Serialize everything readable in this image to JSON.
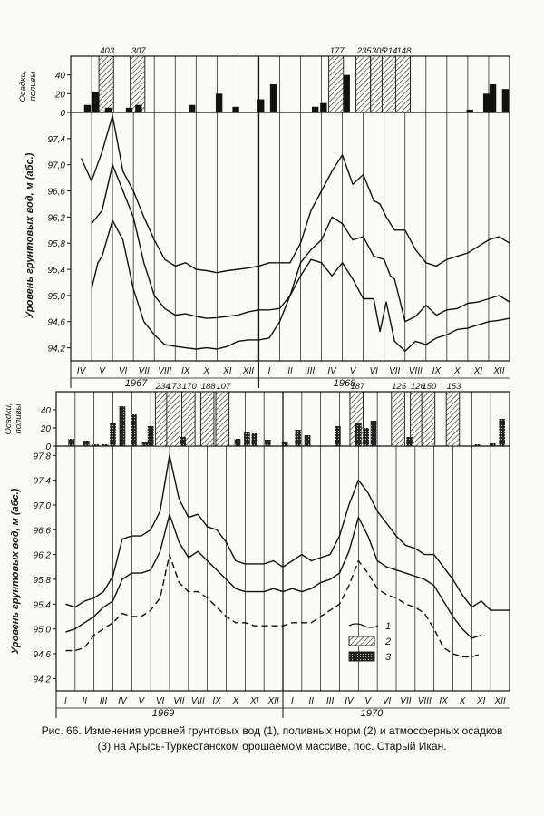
{
  "caption": "Рис. 66. Изменения уровней грунтовых вод (1), поливных норм (2) и атмосферных осадков (3) на Арысь-Туркестанском орошаемом массиве, пос. Старый Икан.",
  "chart_data": [
    {
      "type": "line",
      "panel": "top",
      "years": [
        "1967",
        "1968"
      ],
      "months": [
        "IV",
        "V",
        "VI",
        "VII",
        "VIII",
        "IX",
        "X",
        "XI",
        "XII",
        "I",
        "II",
        "III",
        "IV",
        "V",
        "VI",
        "VII",
        "VIII",
        "IX",
        "X",
        "XI",
        "XII"
      ],
      "ylabel": "Уровень грунтовых вод, м (абс.)",
      "yticks": [
        "94,2",
        "94,6",
        "95,0",
        "95,4",
        "95,8",
        "96,2",
        "96,6",
        "97,0",
        "97,4"
      ],
      "ylim": [
        94.0,
        97.8
      ],
      "bar_ylabel": "Осадки, поливы, мм",
      "bar_yticks": [
        "0",
        "20",
        "40"
      ],
      "bar_ylim": [
        0,
        60
      ],
      "series": [
        {
          "name": "1",
          "style": "solid",
          "x": [
            0,
            0.5,
            1,
            1.5,
            2,
            2.5,
            3,
            3.5,
            4,
            4.5,
            5,
            5.5,
            6,
            6.5,
            7,
            7.5,
            8,
            8.5,
            9,
            9.5,
            10,
            10.5,
            11,
            11.5,
            12,
            12.5,
            13,
            13.5,
            14,
            14.3,
            14.6,
            15,
            15.5,
            16,
            16.5,
            17,
            17.5,
            18,
            18.5,
            19,
            19.5,
            20,
            20.5
          ],
          "y": [
            97.1,
            96.75,
            97.2,
            97.75,
            96.9,
            96.6,
            96.2,
            95.85,
            95.55,
            95.45,
            95.5,
            95.4,
            95.38,
            95.35,
            95.38,
            95.4,
            95.42,
            95.45,
            95.5,
            95.5,
            95.5,
            95.8,
            96.3,
            96.6,
            96.9,
            97.15,
            96.7,
            96.85,
            96.45,
            96.4,
            96.2,
            96.0,
            96.0,
            95.7,
            95.5,
            95.45,
            95.55,
            95.6,
            95.65,
            95.75,
            95.85,
            95.9,
            95.8
          ]
        },
        {
          "name": "2",
          "style": "solid",
          "x": [
            0.5,
            1,
            1.5,
            2,
            2.5,
            3,
            3.5,
            4,
            4.5,
            5,
            5.5,
            6,
            6.5,
            7,
            7.5,
            8,
            8.5,
            9,
            9.5,
            10,
            10.5,
            11,
            11.5,
            12,
            12.5,
            13,
            13.5,
            14,
            14.5,
            14.8,
            15,
            15.5,
            16,
            16.5,
            17,
            17.5,
            18,
            18.5,
            19,
            19.5,
            20,
            20.5
          ],
          "y": [
            96.1,
            96.3,
            97.0,
            96.6,
            96.2,
            95.5,
            95.0,
            94.8,
            94.7,
            94.72,
            94.68,
            94.65,
            94.66,
            94.68,
            94.7,
            94.75,
            94.78,
            94.78,
            94.8,
            95.0,
            95.5,
            95.7,
            95.85,
            96.2,
            96.1,
            95.85,
            95.9,
            95.6,
            95.55,
            95.3,
            95.25,
            94.6,
            94.68,
            94.85,
            94.7,
            94.78,
            94.8,
            94.88,
            94.9,
            94.95,
            95.0,
            94.9
          ]
        },
        {
          "name": "3",
          "style": "solid",
          "x": [
            0.5,
            0.8,
            1,
            1.5,
            2,
            2.5,
            3,
            3.5,
            4,
            4.5,
            5,
            5.5,
            6,
            6.5,
            7,
            7.5,
            8,
            8.5,
            9,
            9.5,
            10,
            10.5,
            11,
            11.5,
            12,
            12.5,
            13,
            13.5,
            14,
            14.3,
            14.6,
            15,
            15.5,
            16,
            16.5,
            17,
            17.5,
            18,
            18.5,
            19,
            19.5,
            20,
            20.5
          ],
          "y": [
            95.1,
            95.5,
            95.6,
            96.15,
            95.85,
            95.1,
            94.6,
            94.4,
            94.25,
            94.22,
            94.2,
            94.18,
            94.2,
            94.18,
            94.22,
            94.3,
            94.32,
            94.32,
            94.35,
            94.6,
            95.0,
            95.3,
            95.55,
            95.5,
            95.3,
            95.5,
            95.25,
            94.95,
            94.95,
            94.45,
            94.9,
            94.3,
            94.15,
            94.3,
            94.25,
            94.35,
            94.4,
            94.48,
            94.5,
            94.55,
            94.6,
            94.62,
            94.65
          ]
        }
      ],
      "irrigation": [
        {
          "x": 1.2,
          "value": 403,
          "label": "403"
        },
        {
          "x": 2.7,
          "value": 307,
          "label": "307"
        },
        {
          "x": 12.2,
          "value": 177,
          "label": "177"
        },
        {
          "x": 13.5,
          "value": 235,
          "label": "235"
        },
        {
          "x": 14.2,
          "value": 305,
          "label": "305"
        },
        {
          "x": 14.75,
          "value": 214,
          "label": "214"
        },
        {
          "x": 15.4,
          "value": 148,
          "label": "148"
        }
      ],
      "precipitation": [
        {
          "x": 0.3,
          "value": 8
        },
        {
          "x": 0.7,
          "value": 22
        },
        {
          "x": 1.3,
          "value": 5
        },
        {
          "x": 2.3,
          "value": 5
        },
        {
          "x": 2.75,
          "value": 8
        },
        {
          "x": 5.3,
          "value": 8
        },
        {
          "x": 6.6,
          "value": 20
        },
        {
          "x": 7.4,
          "value": 6
        },
        {
          "x": 8.6,
          "value": 14
        },
        {
          "x": 9.2,
          "value": 30
        },
        {
          "x": 11.2,
          "value": 6
        },
        {
          "x": 11.6,
          "value": 10
        },
        {
          "x": 12.7,
          "value": 40
        },
        {
          "x": 18.6,
          "value": 3
        },
        {
          "x": 19.4,
          "value": 20
        },
        {
          "x": 19.7,
          "value": 30
        },
        {
          "x": 20.3,
          "value": 25
        }
      ]
    },
    {
      "type": "line",
      "panel": "bottom",
      "years": [
        "1969",
        "1970"
      ],
      "months": [
        "I",
        "II",
        "III",
        "IV",
        "V",
        "VI",
        "VII",
        "VIII",
        "IX",
        "X",
        "XI",
        "XII",
        "I",
        "II",
        "III",
        "IV",
        "V",
        "VI",
        "VII",
        "VIII",
        "IX",
        "X",
        "XI",
        "XII"
      ],
      "ylabel": "Уровень грунтовых вод, м (абс.)",
      "yticks": [
        "94,2",
        "94,6",
        "95,0",
        "95,4",
        "95,8",
        "96,2",
        "96,6",
        "97,0",
        "97,4",
        "97,8"
      ],
      "ylim": [
        94.0,
        97.95
      ],
      "bar_ylabel": "Осадки, поливы, мм",
      "bar_yticks": [
        "0",
        "20",
        "40"
      ],
      "bar_ylim": [
        0,
        60
      ],
      "legend": [
        {
          "label": "1",
          "kind": "line"
        },
        {
          "label": "2",
          "kind": "hatch"
        },
        {
          "label": "3",
          "kind": "dots"
        }
      ],
      "series": [
        {
          "name": "1",
          "style": "solid",
          "x": [
            0,
            0.5,
            1,
            1.5,
            2,
            2.5,
            3,
            3.5,
            4,
            4.5,
            5,
            5.5,
            6,
            6.5,
            7,
            7.5,
            8,
            8.5,
            9,
            9.5,
            10,
            10.5,
            11,
            11.5,
            12,
            12.5,
            13,
            13.5,
            14,
            14.5,
            15,
            15.5,
            16,
            16.5,
            17,
            17.5,
            18,
            18.5,
            19,
            19.5,
            20,
            20.5,
            21,
            21.5,
            22,
            22.5,
            23,
            23.5
          ],
          "y": [
            95.4,
            95.35,
            95.45,
            95.5,
            95.6,
            95.85,
            96.45,
            96.5,
            96.5,
            96.6,
            96.9,
            97.8,
            97.1,
            96.8,
            96.85,
            96.65,
            96.6,
            96.4,
            96.1,
            96.05,
            96.05,
            96.05,
            96.1,
            96.0,
            96.1,
            96.2,
            96.1,
            96.15,
            96.2,
            96.5,
            97.0,
            97.4,
            97.2,
            96.9,
            96.7,
            96.5,
            96.35,
            96.3,
            96.2,
            96.2,
            96.0,
            95.8,
            95.55,
            95.35,
            95.45,
            95.3,
            95.3,
            95.3
          ]
        },
        {
          "name": "2",
          "style": "solid",
          "x": [
            0,
            0.5,
            1,
            1.5,
            2,
            2.5,
            3,
            3.5,
            4,
            4.5,
            5,
            5.5,
            6,
            6.5,
            7,
            7.5,
            8,
            8.5,
            9,
            9.5,
            10,
            10.5,
            11,
            11.5,
            12,
            12.5,
            13,
            13.5,
            14,
            14.5,
            15,
            15.5,
            16,
            16.5,
            17,
            17.5,
            18,
            18.5,
            19,
            19.5,
            20,
            20.5,
            21,
            21.5,
            22
          ],
          "y": [
            94.95,
            95.0,
            95.1,
            95.2,
            95.35,
            95.45,
            95.8,
            95.9,
            95.9,
            95.95,
            96.25,
            96.85,
            96.4,
            96.15,
            96.25,
            96.1,
            95.95,
            95.8,
            95.65,
            95.6,
            95.6,
            95.6,
            95.65,
            95.6,
            95.65,
            95.6,
            95.65,
            95.75,
            95.8,
            95.9,
            96.25,
            96.8,
            96.5,
            96.1,
            96.0,
            95.95,
            95.9,
            95.85,
            95.8,
            95.7,
            95.45,
            95.2,
            95.0,
            94.85,
            94.9
          ]
        },
        {
          "name": "3",
          "style": "dashed",
          "x": [
            0,
            0.5,
            1,
            1.5,
            2,
            2.5,
            3,
            3.5,
            4,
            4.5,
            5,
            5.5,
            6,
            6.5,
            7,
            7.5,
            8,
            8.5,
            9,
            9.5,
            10,
            10.5,
            11,
            11.5,
            12,
            12.5,
            13,
            13.5,
            14,
            14.5,
            15,
            15.5,
            16,
            16.5,
            17,
            17.5,
            18,
            18.5,
            19,
            19.5,
            20,
            20.5,
            21,
            21.5,
            22
          ],
          "y": [
            94.65,
            94.65,
            94.7,
            94.9,
            95.0,
            95.1,
            95.25,
            95.2,
            95.2,
            95.3,
            95.5,
            96.2,
            95.75,
            95.6,
            95.6,
            95.5,
            95.35,
            95.2,
            95.1,
            95.1,
            95.05,
            95.05,
            95.05,
            95.05,
            95.1,
            95.1,
            95.1,
            95.2,
            95.3,
            95.4,
            95.7,
            96.1,
            95.9,
            95.65,
            95.55,
            95.5,
            95.4,
            95.35,
            95.25,
            95.0,
            94.7,
            94.6,
            94.55,
            94.55,
            94.6
          ]
        }
      ],
      "irrigation": [
        {
          "x": 5.1,
          "value": 234,
          "label": "234"
        },
        {
          "x": 5.7,
          "value": 173,
          "label": "173"
        },
        {
          "x": 6.5,
          "value": 170,
          "label": "170"
        },
        {
          "x": 7.5,
          "value": 188,
          "label": "188"
        },
        {
          "x": 8.3,
          "value": 107,
          "label": "107"
        },
        {
          "x": 15.4,
          "value": 187,
          "label": "187"
        },
        {
          "x": 17.6,
          "value": 125,
          "label": "125"
        },
        {
          "x": 18.6,
          "value": 126,
          "label": "126"
        },
        {
          "x": 19.2,
          "value": 150,
          "label": "150"
        },
        {
          "x": 20.5,
          "value": 153,
          "label": "153"
        }
      ],
      "precipitation": [
        {
          "x": 0.3,
          "value": 8
        },
        {
          "x": 1.1,
          "value": 6
        },
        {
          "x": 1.6,
          "value": 2
        },
        {
          "x": 2.1,
          "value": 2
        },
        {
          "x": 2.5,
          "value": 25
        },
        {
          "x": 3.0,
          "value": 44
        },
        {
          "x": 3.6,
          "value": 35
        },
        {
          "x": 4.2,
          "value": 5
        },
        {
          "x": 4.5,
          "value": 22
        },
        {
          "x": 6.2,
          "value": 10
        },
        {
          "x": 9.1,
          "value": 8
        },
        {
          "x": 9.6,
          "value": 15
        },
        {
          "x": 10.0,
          "value": 14
        },
        {
          "x": 10.7,
          "value": 7
        },
        {
          "x": 11.6,
          "value": 5
        },
        {
          "x": 12.3,
          "value": 18
        },
        {
          "x": 12.8,
          "value": 12
        },
        {
          "x": 14.4,
          "value": 22
        },
        {
          "x": 15.5,
          "value": 26
        },
        {
          "x": 15.9,
          "value": 20
        },
        {
          "x": 16.3,
          "value": 28
        },
        {
          "x": 18.2,
          "value": 10
        },
        {
          "x": 21.8,
          "value": 2
        },
        {
          "x": 22.6,
          "value": 3
        },
        {
          "x": 23.1,
          "value": 30
        }
      ]
    }
  ],
  "colors": {
    "ink": "#111111",
    "paper": "#fafaf7"
  }
}
